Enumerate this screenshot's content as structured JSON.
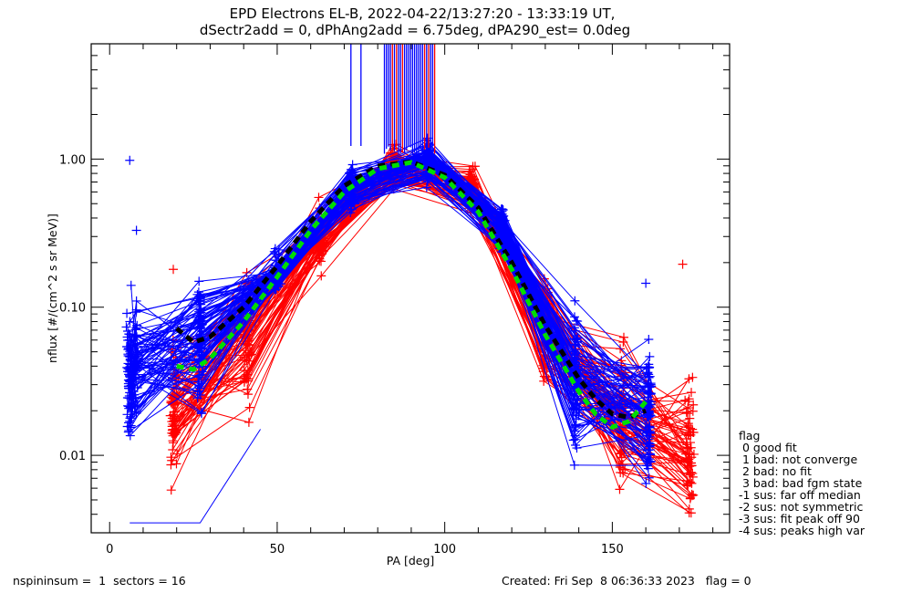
{
  "chart_data": {
    "type": "line",
    "title": "EPD Electrons EL-B, 2022-04-22/13:27:20 - 13:33:19 UT,",
    "subtitle": "dSectr2add = 0, dPhAng2add = 6.75deg, dPA290_est=   0.0deg",
    "xlabel": "PA [deg]",
    "ylabel": "nflux [#/(cm^2 s sr MeV)]",
    "xlim": [
      -5.5,
      185
    ],
    "ylim": [
      0.003,
      6.0
    ],
    "yscale": "log",
    "x_ticks": [
      0,
      50,
      100,
      150
    ],
    "x_tick_labels": [
      "0",
      "50",
      "100",
      "150"
    ],
    "x_minor_step": 10,
    "y_ticks": [
      0.01,
      0.1,
      1.0
    ],
    "y_tick_labels": [
      "0.01",
      "0.10",
      "1.00"
    ],
    "grid": false,
    "series": [
      {
        "name": "blue spin-sector traces (even sectors)",
        "color": "#0000ff",
        "marker": "+",
        "pa_bins": [
          6,
          8,
          27,
          50,
          72,
          95,
          117,
          139,
          161
        ],
        "median_values": [
          0.035,
          0.05,
          0.06,
          0.17,
          0.62,
          1.0,
          0.35,
          0.034,
          0.02
        ]
      },
      {
        "name": "red spin-sector traces (odd sectors)",
        "color": "#ff0000",
        "marker": "+",
        "pa_bins": [
          19,
          41,
          63,
          85,
          108,
          130,
          153,
          173
        ],
        "median_values": [
          0.022,
          0.055,
          0.3,
          0.85,
          0.6,
          0.07,
          0.02,
          0.011
        ]
      },
      {
        "name": "median fit (black dashed)",
        "color": "#000000",
        "style": "dashed",
        "x": [
          20,
          25,
          30,
          40,
          50,
          60,
          70,
          80,
          90,
          100,
          110,
          120,
          130,
          140,
          145,
          150,
          155,
          160
        ],
        "values": [
          0.072,
          0.058,
          0.063,
          0.1,
          0.19,
          0.38,
          0.66,
          0.9,
          0.96,
          0.78,
          0.47,
          0.2,
          0.075,
          0.033,
          0.024,
          0.019,
          0.018,
          0.02
        ]
      },
      {
        "name": "symmetric fit (green dashed)",
        "color": "#00dd00",
        "style": "dashed",
        "x": [
          20,
          25,
          30,
          40,
          50,
          60,
          70,
          80,
          90,
          100,
          110,
          120,
          130,
          140,
          145,
          150,
          155,
          160
        ],
        "values": [
          0.04,
          0.038,
          0.045,
          0.08,
          0.16,
          0.33,
          0.6,
          0.86,
          0.95,
          0.75,
          0.44,
          0.18,
          0.065,
          0.027,
          0.019,
          0.0155,
          0.017,
          0.023
        ]
      }
    ],
    "outliers": [
      {
        "pa": 6,
        "value": 0.98,
        "color": "#0000ff"
      },
      {
        "pa": 8,
        "value": 0.33,
        "color": "#0000ff"
      },
      {
        "pa": 19,
        "value": 0.18,
        "color": "#ff0000"
      },
      {
        "pa": 160,
        "value": 0.145,
        "color": "#0000ff"
      },
      {
        "pa": 171,
        "value": 0.195,
        "color": "#ff0000"
      }
    ],
    "error_bars_off_scale_pa_range": [
      72,
      97
    ],
    "legend": {
      "position": "right",
      "title": "flag",
      "entries": [
        " 0 good fit",
        " 1 bad: not converge",
        " 2 bad: no fit",
        " 3 bad: bad fgm state",
        "-1 sus: far off median",
        "-2 sus: not symmetric",
        "-3 sus: fit peak off 90",
        "-4 sus: peaks high var"
      ]
    }
  },
  "footer": {
    "left": "nspininsum =  1  sectors = 16",
    "right": "Created: Fri Sep  8 06:36:33 2023   flag = 0"
  }
}
